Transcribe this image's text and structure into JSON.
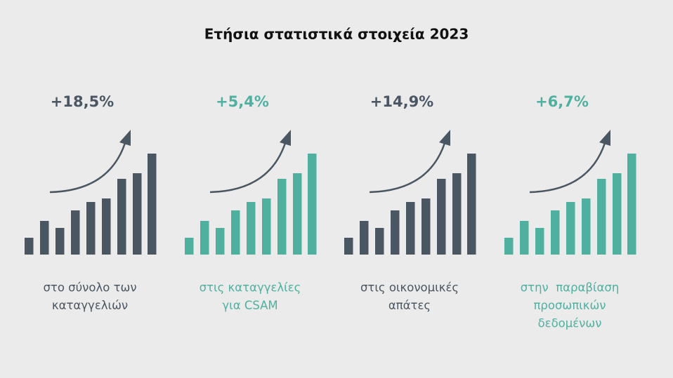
{
  "title": "Ετήσια στατιστικά στοιχεία 2023",
  "panels": [
    {
      "value": "+18,5%",
      "label": [
        "στο σύνολο των",
        "καταγγελιών"
      ],
      "color": "#4a5661"
    },
    {
      "value": "+5,4%",
      "label": [
        "στις καταγγελίες",
        "για CSAM"
      ],
      "color": "#4fb0a0"
    },
    {
      "value": "+14,9%",
      "label": [
        "στις οικονομικές",
        "απάτες"
      ],
      "color": "#4a5661"
    },
    {
      "value": "+6,7%",
      "label": [
        "στην  παραβίαση",
        "προσωπικών",
        "δεδομένων"
      ],
      "color": "#4fb0a0"
    }
  ]
}
